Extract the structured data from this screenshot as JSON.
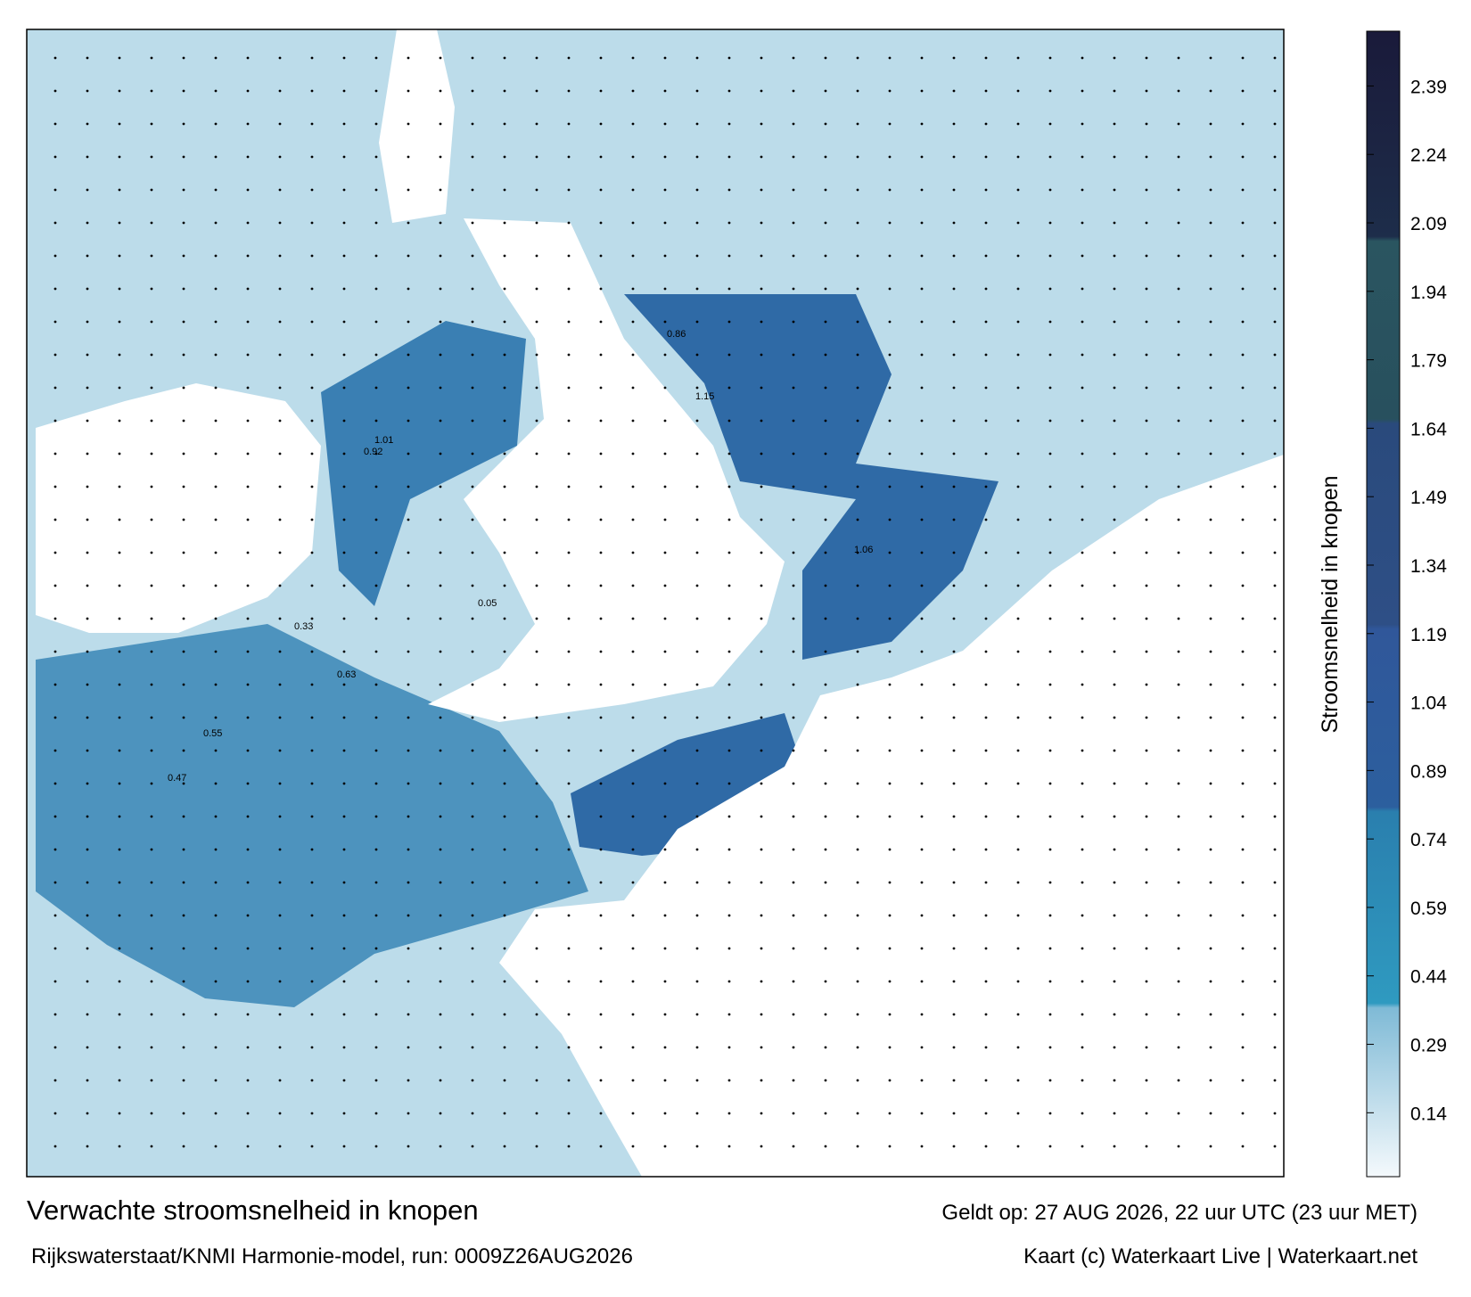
{
  "map": {
    "title": "Verwachte stroomsnelheid in knopen",
    "valid": "Geldt op: 27 AUG 2026, 22 uur UTC (23 uur MET)",
    "model": "Rijkswaterstaat/KNMI Harmonie-model, run: 0009Z26AUG2026",
    "credit": "Kaart (c) Waterkaart Live | Waterkaart.net",
    "labels": [
      "0.86",
      "1.15",
      "1.01",
      "0.92",
      "1.06",
      "0.63",
      "0.55",
      "0.47",
      "0.33",
      "0.05"
    ]
  },
  "colorbar": {
    "label": "Stroomsnelheid in knopen",
    "lim": [
      0,
      2.51
    ],
    "ticks": [
      0.14,
      0.29,
      0.44,
      0.59,
      0.74,
      0.89,
      1.04,
      1.19,
      1.34,
      1.49,
      1.64,
      1.79,
      1.94,
      2.09,
      2.24,
      2.39
    ],
    "stops": [
      {
        "value": 0,
        "color": "#f4f9fc"
      },
      {
        "value": 0.37,
        "color": "#7fbad6"
      },
      {
        "value": 0.38,
        "color": "#2f9ac0"
      },
      {
        "value": 0.8,
        "color": "#2a7fae"
      },
      {
        "value": 0.81,
        "color": "#2c5f9e"
      },
      {
        "value": 1.2,
        "color": "#30579a"
      },
      {
        "value": 1.21,
        "color": "#2e4f86"
      },
      {
        "value": 1.65,
        "color": "#2a4a7c"
      },
      {
        "value": 1.66,
        "color": "#28505e"
      },
      {
        "value": 2.05,
        "color": "#2a5560"
      },
      {
        "value": 2.06,
        "color": "#1d2d4a"
      },
      {
        "value": 2.51,
        "color": "#1a1a3a"
      }
    ]
  }
}
